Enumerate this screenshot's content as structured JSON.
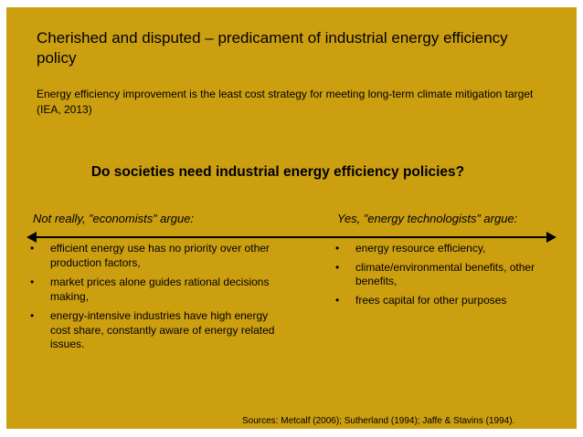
{
  "title": "Cherished and disputed – predicament of industrial energy efficiency policy",
  "subtitle": "Energy efficiency improvement is the least cost strategy for meeting long-term climate mitigation target (IEA, 2013)",
  "question": "Do societies need industrial energy efficiency policies?",
  "left": {
    "heading": "Not really, ”economists” argue:",
    "points": [
      "efficient energy use has no priority over other production factors,",
      "market prices alone guides rational decisions making,",
      "energy-intensive industries have high energy cost share, constantly aware of energy related issues."
    ]
  },
  "right": {
    "heading": "Yes, ”energy technologists” argue:",
    "points": [
      "energy resource efficiency,",
      "climate/environmental benefits, other benefits,",
      "frees capital for other purposes"
    ]
  },
  "bullet_glyph": "•",
  "sources": "Sources: Metcalf (2006); Sutherland (1994); Jaffe & Stavins (1994).",
  "colors": {
    "slide_background": "#cc9f11",
    "text": "#000000"
  }
}
